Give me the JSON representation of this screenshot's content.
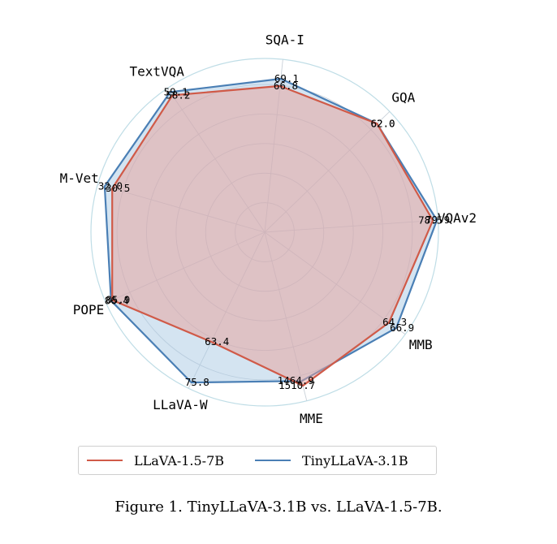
{
  "chart_data": {
    "type": "radar",
    "axes": [
      "VQAv2",
      "GQA",
      "SQA-I",
      "TextVQA",
      "M-Vet",
      "POPE",
      "LLaVA-W",
      "MME",
      "MMB"
    ],
    "series": [
      {
        "name": "LLaVA-1.5-7B",
        "color": "#d05a48",
        "fill": "#e8a09a",
        "values": [
          78.5,
          62.0,
          66.8,
          58.2,
          30.5,
          85.9,
          63.4,
          1510.7,
          64.3
        ],
        "value_labels": [
          "78.5",
          "62.0",
          "66.8",
          "58.2",
          "30.5",
          "85.9",
          "63.4",
          "1510.7",
          "64.3"
        ]
      },
      {
        "name": "TinyLLaVA-3.1B",
        "color": "#4a7fb5",
        "fill": "#a9c9e4",
        "values": [
          79.9,
          62.0,
          69.1,
          59.1,
          32.0,
          86.4,
          75.8,
          1464.9,
          66.9
        ],
        "value_labels": [
          "79.9",
          "62.0",
          "69.1",
          "59.1",
          "32.0",
          "86.4",
          "75.8",
          "1464.9",
          "66.9"
        ]
      }
    ],
    "legend_position": "bottom",
    "grid": true
  },
  "legend": {
    "series1": "LLaVA-1.5-7B",
    "series2": "TinyLLaVA-3.1B"
  },
  "caption": "Figure 1. TinyLLaVA-3.1B vs. LLaVA-1.5-7B."
}
